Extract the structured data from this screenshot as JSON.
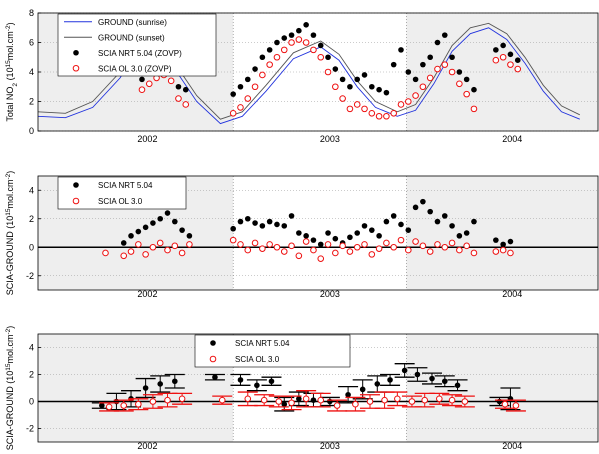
{
  "chart_data": [
    {
      "type": "scatter",
      "ylabel": "Total NO2 (10^15 mol.cm^-2)",
      "ylabel_parts": [
        "Total NO",
        "2",
        " (10",
        "15",
        "mol.cm",
        "-2",
        ")"
      ],
      "ylim": [
        0,
        8
      ],
      "yticks": [
        "0",
        "2",
        "4",
        "6",
        "8"
      ],
      "year_labels": [
        "2002",
        "2003",
        "2004"
      ],
      "grid": "dotted horizontal",
      "legend_placement": "top-left",
      "legend": [
        "GROUND (sunrise)",
        "GROUND (sunset)",
        "SCIA NRT 5.04 (ZOVP)",
        "SCIA OL 3.0 (ZOVP)"
      ],
      "series": [
        {
          "name": "GROUND (sunrise)",
          "color": "#2233dd",
          "marker": "line",
          "x": [
            2001.55,
            2001.7,
            2001.85,
            2002.0,
            2002.1,
            2002.2,
            2002.3,
            2002.42,
            2002.55,
            2002.67,
            2002.8,
            2002.95,
            2003.1,
            2003.2,
            2003.3,
            2003.4,
            2003.52,
            2003.62,
            2003.72,
            2003.82,
            2003.92,
            2004.02,
            2004.12,
            2004.22,
            2004.32,
            2004.42,
            2004.52
          ],
          "y": [
            1.0,
            0.9,
            1.6,
            3.6,
            5.6,
            5.9,
            4.2,
            2.0,
            0.5,
            1.0,
            2.7,
            4.9,
            5.7,
            4.8,
            3.0,
            1.6,
            1.0,
            1.4,
            3.2,
            5.4,
            6.6,
            7.0,
            6.2,
            4.6,
            2.7,
            1.3,
            0.8
          ]
        },
        {
          "name": "GROUND (sunset)",
          "color": "#555555",
          "marker": "line",
          "x": [
            2001.55,
            2001.7,
            2001.85,
            2002.0,
            2002.1,
            2002.2,
            2002.3,
            2002.42,
            2002.55,
            2002.67,
            2002.8,
            2002.95,
            2003.1,
            2003.2,
            2003.3,
            2003.4,
            2003.52,
            2003.62,
            2003.72,
            2003.82,
            2003.92,
            2004.02,
            2004.12,
            2004.22,
            2004.32,
            2004.42,
            2004.52
          ],
          "y": [
            1.3,
            1.2,
            2.0,
            4.0,
            6.0,
            6.3,
            4.6,
            2.4,
            0.8,
            1.3,
            3.1,
            5.3,
            6.1,
            5.2,
            3.4,
            2.0,
            1.3,
            1.8,
            3.6,
            5.8,
            7.0,
            7.3,
            6.6,
            5.0,
            3.1,
            1.7,
            1.1
          ]
        },
        {
          "name": "SCIA NRT 5.04 (ZOVP)",
          "color": "#000000",
          "marker": "dot",
          "x": [
            2002.12,
            2002.16,
            2002.2,
            2002.24,
            2002.28,
            2002.32,
            2002.36,
            2002.62,
            2002.66,
            2002.7,
            2002.74,
            2002.78,
            2002.82,
            2002.86,
            2002.9,
            2002.94,
            2002.98,
            2003.02,
            2003.06,
            2003.1,
            2003.14,
            2003.18,
            2003.22,
            2003.26,
            2003.3,
            2003.34,
            2003.38,
            2003.42,
            2003.46,
            2003.5,
            2003.54,
            2003.58,
            2003.62,
            2003.66,
            2003.7,
            2003.74,
            2003.78,
            2003.82,
            2003.86,
            2003.9,
            2003.94,
            2004.06,
            2004.1,
            2004.14,
            2004.18
          ],
          "y": [
            3.5,
            4.0,
            4.5,
            4.8,
            4.2,
            3.0,
            2.8,
            2.5,
            3.0,
            3.5,
            4.2,
            5.0,
            5.5,
            6.0,
            6.3,
            6.5,
            6.8,
            7.2,
            6.5,
            5.8,
            5.0,
            4.2,
            3.5,
            3.0,
            3.5,
            3.8,
            3.0,
            2.8,
            2.6,
            4.5,
            5.5,
            4.0,
            3.5,
            4.5,
            5.0,
            6.0,
            6.5,
            5.0,
            4.0,
            3.5,
            2.8,
            5.5,
            5.8,
            5.2,
            4.8
          ]
        },
        {
          "name": "SCIA OL 3.0 (ZOVP)",
          "color": "#ee1111",
          "marker": "open-circle",
          "x": [
            2002.12,
            2002.16,
            2002.2,
            2002.24,
            2002.28,
            2002.32,
            2002.36,
            2002.62,
            2002.66,
            2002.7,
            2002.74,
            2002.78,
            2002.82,
            2002.86,
            2002.9,
            2002.94,
            2002.98,
            2003.02,
            2003.06,
            2003.1,
            2003.14,
            2003.18,
            2003.22,
            2003.26,
            2003.3,
            2003.34,
            2003.38,
            2003.42,
            2003.46,
            2003.5,
            2003.54,
            2003.58,
            2003.62,
            2003.66,
            2003.7,
            2003.74,
            2003.78,
            2003.82,
            2003.86,
            2003.9,
            2003.94,
            2004.06,
            2004.1,
            2004.14,
            2004.18
          ],
          "y": [
            2.8,
            3.2,
            3.6,
            3.8,
            3.4,
            2.2,
            1.8,
            1.2,
            1.6,
            2.2,
            3.0,
            3.8,
            4.5,
            5.0,
            5.5,
            6.0,
            6.2,
            6.0,
            5.5,
            5.0,
            4.0,
            3.0,
            2.2,
            1.5,
            1.8,
            1.5,
            1.2,
            1.0,
            1.0,
            1.2,
            1.8,
            2.0,
            2.4,
            3.0,
            3.6,
            4.2,
            4.5,
            4.0,
            3.2,
            2.5,
            1.5,
            4.8,
            5.0,
            4.5,
            4.2
          ]
        }
      ]
    },
    {
      "type": "scatter",
      "ylabel": "SCIA-GROUND (10^15 mol.cm^-2)",
      "ylabel_parts": [
        "SCIA-GROUND (10",
        "15",
        "mol.cm",
        "-2",
        ")"
      ],
      "ylim": [
        -3,
        5
      ],
      "yticks": [
        "-2",
        "0",
        "2",
        "4"
      ],
      "year_labels": [
        "2002",
        "2003",
        "2004"
      ],
      "grid": "dotted horizontal",
      "legend_placement": "top-left",
      "legend": [
        "SCIA NRT 5.04",
        "SCIA OL 3.0"
      ],
      "series": [
        {
          "name": "SCIA NRT 5.04",
          "color": "#000000",
          "marker": "dot",
          "x": [
            2002.02,
            2002.06,
            2002.1,
            2002.14,
            2002.18,
            2002.22,
            2002.26,
            2002.3,
            2002.34,
            2002.38,
            2002.62,
            2002.66,
            2002.7,
            2002.74,
            2002.78,
            2002.82,
            2002.86,
            2002.9,
            2002.94,
            2002.98,
            2003.02,
            2003.06,
            2003.1,
            2003.14,
            2003.18,
            2003.22,
            2003.26,
            2003.3,
            2003.34,
            2003.38,
            2003.42,
            2003.46,
            2003.5,
            2003.54,
            2003.58,
            2003.62,
            2003.66,
            2003.7,
            2003.74,
            2003.78,
            2003.82,
            2003.86,
            2003.9,
            2003.94,
            2004.06,
            2004.1,
            2004.14
          ],
          "y": [
            0.3,
            0.8,
            1.1,
            1.4,
            1.7,
            2.0,
            2.4,
            1.8,
            1.2,
            0.8,
            1.3,
            1.8,
            2.0,
            1.7,
            1.5,
            1.8,
            1.6,
            1.5,
            2.2,
            1.0,
            0.8,
            0.5,
            0.2,
            1.0,
            0.6,
            0.3,
            0.7,
            1.0,
            1.5,
            1.2,
            0.8,
            1.8,
            2.2,
            1.6,
            1.2,
            2.8,
            3.2,
            2.5,
            1.8,
            2.2,
            1.5,
            0.8,
            1.0,
            1.8,
            0.5,
            0.2,
            0.4
          ]
        },
        {
          "name": "SCIA OL 3.0",
          "color": "#ee1111",
          "marker": "open-circle",
          "x": [
            2001.92,
            2002.02,
            2002.06,
            2002.1,
            2002.14,
            2002.18,
            2002.22,
            2002.26,
            2002.3,
            2002.34,
            2002.38,
            2002.62,
            2002.66,
            2002.7,
            2002.74,
            2002.78,
            2002.82,
            2002.86,
            2002.9,
            2002.94,
            2002.98,
            2003.02,
            2003.06,
            2003.1,
            2003.14,
            2003.18,
            2003.22,
            2003.26,
            2003.3,
            2003.34,
            2003.38,
            2003.42,
            2003.46,
            2003.5,
            2003.54,
            2003.58,
            2003.62,
            2003.66,
            2003.7,
            2003.74,
            2003.78,
            2003.82,
            2003.86,
            2003.9,
            2003.94,
            2004.06,
            2004.1,
            2004.14
          ],
          "y": [
            -0.4,
            -0.6,
            -0.3,
            0.2,
            -0.5,
            0.0,
            0.3,
            -0.2,
            0.1,
            -0.4,
            0.2,
            0.5,
            0.2,
            -0.2,
            0.3,
            -0.1,
            0.2,
            0.0,
            -0.3,
            0.1,
            -0.6,
            0.4,
            -0.2,
            -0.8,
            0.2,
            -0.4,
            0.1,
            -0.3,
            0.0,
            0.2,
            -0.5,
            -0.1,
            0.3,
            0.0,
            0.5,
            -0.2,
            0.4,
            0.1,
            -0.3,
            0.2,
            0.0,
            0.3,
            -0.2,
            0.1,
            -0.4,
            -0.3,
            -0.2,
            -0.4
          ]
        }
      ]
    },
    {
      "type": "scatter",
      "ylabel": "SCIA-GROUND (10^15 mol.cm^-2)",
      "ylabel_parts": [
        "SCIA-GROUND (10",
        "15",
        "mol.cm",
        "-2",
        ")"
      ],
      "ylim": [
        -3,
        5
      ],
      "yticks": [
        "-2",
        "0",
        "2",
        "4"
      ],
      "year_labels": [
        "2002",
        "2003",
        "2004"
      ],
      "grid": "dotted horizontal",
      "legend_placement": "top-center",
      "legend": [
        "SCIA NRT 5.04",
        "SCIA OL 3.0"
      ],
      "series": [
        {
          "name": "SCIA NRT 5.04",
          "color": "#000000",
          "marker": "dot-errorbar",
          "x": [
            2001.9,
            2001.98,
            2002.06,
            2002.14,
            2002.22,
            2002.3,
            2002.52,
            2002.66,
            2002.75,
            2002.83,
            2002.9,
            2002.98,
            2003.06,
            2003.15,
            2003.25,
            2003.33,
            2003.41,
            2003.48,
            2003.56,
            2003.63,
            2003.71,
            2003.78,
            2003.85,
            2004.08,
            2004.14
          ],
          "y": [
            -0.3,
            0.0,
            0.2,
            1.0,
            1.3,
            1.5,
            1.8,
            1.6,
            1.2,
            1.5,
            -0.2,
            0.2,
            0.1,
            0.0,
            0.5,
            0.9,
            1.3,
            1.6,
            2.3,
            2.0,
            1.7,
            1.5,
            1.2,
            0.0,
            0.2
          ],
          "err": [
            0.2,
            0.6,
            0.6,
            0.7,
            0.6,
            0.5,
            0.2,
            0.4,
            0.4,
            0.3,
            0.5,
            0.5,
            0.5,
            0.3,
            0.6,
            0.7,
            0.6,
            0.4,
            0.5,
            0.5,
            0.4,
            0.4,
            0.4,
            0.3,
            0.8
          ]
        },
        {
          "name": "SCIA OL 3.0",
          "color": "#ee1111",
          "marker": "circle-errorbar",
          "x": [
            2001.94,
            2002.02,
            2002.1,
            2002.18,
            2002.26,
            2002.34,
            2002.56,
            2002.7,
            2002.79,
            2002.87,
            2002.94,
            2003.02,
            2003.1,
            2003.19,
            2003.29,
            2003.37,
            2003.45,
            2003.52,
            2003.6,
            2003.67,
            2003.75,
            2003.82,
            2003.89,
            2004.11,
            2004.17
          ],
          "y": [
            -0.4,
            -0.3,
            -0.2,
            0.0,
            0.1,
            0.2,
            0.1,
            0.2,
            0.1,
            0.0,
            -0.1,
            0.2,
            0.1,
            -0.3,
            -0.2,
            0.0,
            0.1,
            0.2,
            0.0,
            0.1,
            0.2,
            0.1,
            0.0,
            -0.2,
            -0.3
          ],
          "err": [
            0.3,
            0.4,
            0.4,
            0.5,
            0.5,
            0.4,
            0.3,
            0.5,
            0.4,
            0.4,
            0.5,
            0.6,
            0.5,
            0.4,
            0.5,
            0.5,
            0.6,
            0.5,
            0.4,
            0.5,
            0.4,
            0.4,
            0.4,
            0.3,
            0.4
          ]
        }
      ]
    }
  ]
}
